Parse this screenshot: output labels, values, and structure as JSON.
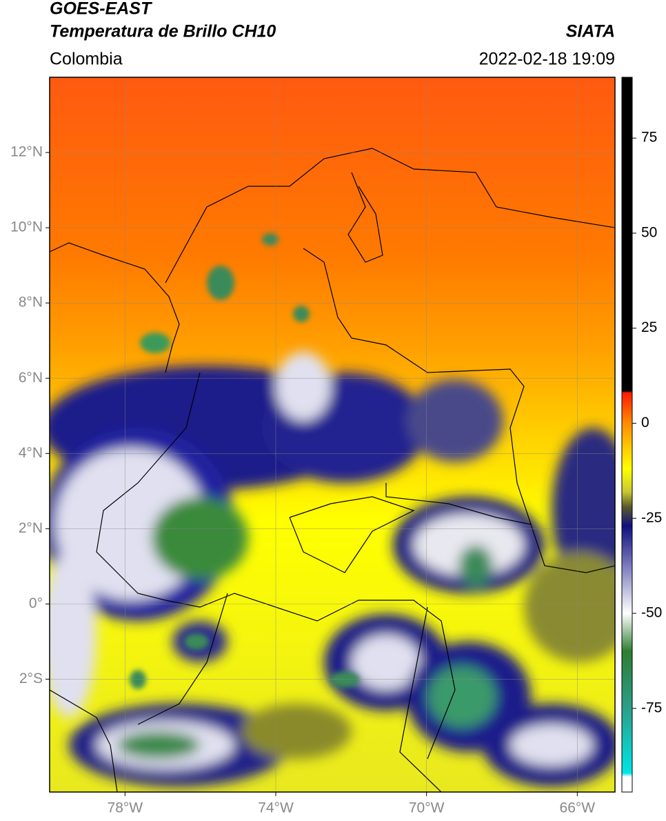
{
  "header": {
    "title": "GOES-EAST",
    "subtitle": "Temperatura de Brillo CH10",
    "source": "SIATA",
    "region": "Colombia",
    "datetime": "2022-02-18 19:09"
  },
  "map": {
    "xlim": [
      -80,
      -65
    ],
    "ylim": [
      -5,
      14
    ],
    "grid": true,
    "xticks": [
      {
        "value": -78,
        "label": "78°W"
      },
      {
        "value": -74,
        "label": "74°W"
      },
      {
        "value": -70,
        "label": "70°W"
      },
      {
        "value": -66,
        "label": "66°W"
      }
    ],
    "yticks": [
      {
        "value": 12,
        "label": "12°N"
      },
      {
        "value": 10,
        "label": "10°N"
      },
      {
        "value": 8,
        "label": "8°N"
      },
      {
        "value": 6,
        "label": "6°N"
      },
      {
        "value": 4,
        "label": "4°N"
      },
      {
        "value": 2,
        "label": "2°N"
      },
      {
        "value": 0,
        "label": "0°"
      },
      {
        "value": -2,
        "label": "2°S"
      }
    ]
  },
  "colorbar": {
    "lim": [
      -97,
      91
    ],
    "ticks": [
      75,
      50,
      25,
      0,
      -25,
      -50,
      -75
    ],
    "colormap": [
      {
        "value": 91,
        "color": "#000000"
      },
      {
        "value": 8.5,
        "color": "#000000"
      },
      {
        "value": 8,
        "color": "#ff1a00"
      },
      {
        "value": 0,
        "color": "#ff8c00"
      },
      {
        "value": -12,
        "color": "#ffff00"
      },
      {
        "value": -18,
        "color": "#c8c832"
      },
      {
        "value": -22,
        "color": "#5a5a2a"
      },
      {
        "value": -27,
        "color": "#101080"
      },
      {
        "value": -38,
        "color": "#8080c0"
      },
      {
        "value": -50,
        "color": "#ffffff"
      },
      {
        "value": -60,
        "color": "#2e7d32"
      },
      {
        "value": -75,
        "color": "#2aa08a"
      },
      {
        "value": -92,
        "color": "#00e5e5"
      },
      {
        "value": -93,
        "color": "#ffffff"
      },
      {
        "value": -97,
        "color": "#ffffff"
      }
    ]
  }
}
